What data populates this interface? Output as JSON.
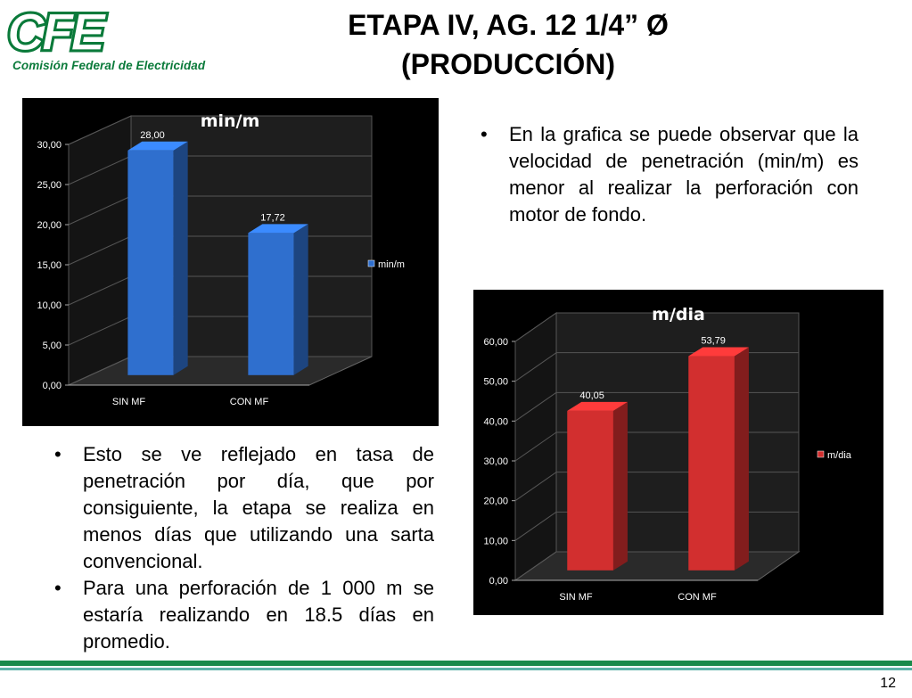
{
  "logo": {
    "mark_text": "CFE",
    "subtitle": "Comisión Federal de Electricidad",
    "brand_color": "#0a7a3a"
  },
  "slide": {
    "title_line1": "ETAPA IV,  AG. 12 1/4” Ø",
    "title_line2": "(PRODUCCIÓN)",
    "page_number": "12"
  },
  "text": {
    "right_bullet": "En la grafica se puede observar que la velocidad de penetración (min/m) es menor al realizar la perforación con motor de fondo.",
    "left_bullets": [
      "Esto se ve reflejado en tasa de penetración por día, que por consiguiente, la etapa se realiza en menos días que utilizando una sarta convencional.",
      "Para una perforación de 1 000 m se estaría realizando en 18.5 días en promedio."
    ]
  },
  "colors": {
    "footer_green": "#1a8a4a",
    "footer_teal": "#5fb3a8"
  },
  "chart_data": [
    {
      "type": "bar",
      "title": "min/m",
      "categories": [
        "SIN MF",
        "CON MF"
      ],
      "series": [
        {
          "name": "min/m",
          "values": [
            28.0,
            17.72
          ],
          "color": "#2f6fce"
        }
      ],
      "data_labels": [
        "28,00",
        "17,72"
      ],
      "yticks": [
        "0,00",
        "5,00",
        "10,00",
        "15,00",
        "20,00",
        "25,00",
        "30,00"
      ],
      "ylim": [
        0,
        30
      ],
      "legend": "right",
      "three_d": true
    },
    {
      "type": "bar",
      "title": "m/dia",
      "categories": [
        "SIN MF",
        "CON MF"
      ],
      "series": [
        {
          "name": "m/dia",
          "values": [
            40.05,
            53.79
          ],
          "color": "#d22f2f"
        }
      ],
      "data_labels": [
        "40,05",
        "53,79"
      ],
      "yticks": [
        "0,00",
        "10,00",
        "20,00",
        "30,00",
        "40,00",
        "50,00",
        "60,00"
      ],
      "ylim": [
        0,
        60
      ],
      "legend": "right",
      "three_d": true
    }
  ]
}
